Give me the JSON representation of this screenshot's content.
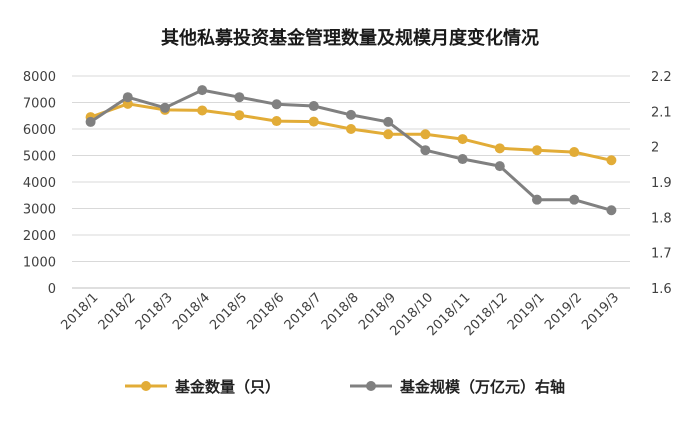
{
  "chart_data": {
    "type": "line",
    "title": "其他私募投资基金管理数量及规模月度变化情况",
    "categories": [
      "2018/1",
      "2018/2",
      "2018/3",
      "2018/4",
      "2018/5",
      "2018/6",
      "2018/7",
      "2018/8",
      "2018/9",
      "2018/10",
      "2018/11",
      "2018/12",
      "2019/1",
      "2019/2",
      "2019/3"
    ],
    "series": [
      {
        "name": "基金数量（只）",
        "axis": "left",
        "color": "#E2AC37",
        "values": [
          6450,
          6950,
          6720,
          6700,
          6520,
          6300,
          6280,
          6000,
          5800,
          5800,
          5620,
          5270,
          5200,
          5130,
          4820
        ]
      },
      {
        "name": "基金规模（万亿元）右轴",
        "axis": "right",
        "color": "#808080",
        "values": [
          2.07,
          2.14,
          2.11,
          2.16,
          2.14,
          2.12,
          2.115,
          2.09,
          2.07,
          1.99,
          1.965,
          1.945,
          1.85,
          1.85,
          1.82
        ]
      }
    ],
    "y_left": {
      "min": 0,
      "max": 8000,
      "ticks": [
        "0",
        "1000",
        "2000",
        "3000",
        "4000",
        "5000",
        "6000",
        "7000",
        "8000"
      ]
    },
    "y_right": {
      "min": 1.6,
      "max": 2.2,
      "ticks": [
        "1.6",
        "1.7",
        "1.8",
        "1.9",
        "2",
        "2.1",
        "2.2"
      ]
    },
    "grid": "horizontal",
    "legend": "bottom"
  }
}
